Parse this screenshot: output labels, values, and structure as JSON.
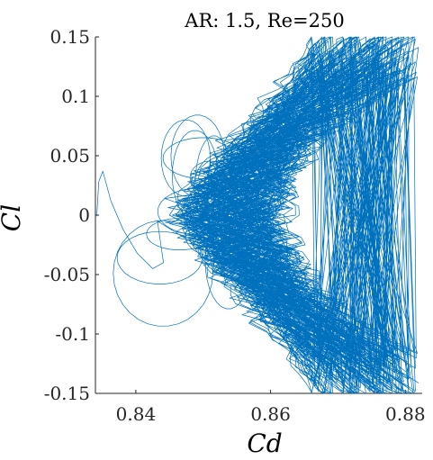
{
  "chart_data": {
    "type": "line",
    "title": "AR: 1.5, Re=250",
    "xlabel": "Cd",
    "ylabel": "Cl",
    "xlim": [
      0.834,
      0.8825
    ],
    "ylim": [
      -0.15,
      0.15
    ],
    "x_ticks": [
      0.84,
      0.86,
      0.88
    ],
    "x_tick_labels": [
      "0.84",
      "0.86",
      "0.88"
    ],
    "y_ticks": [
      -0.15,
      -0.1,
      -0.05,
      0,
      0.05,
      0.1,
      0.15
    ],
    "y_tick_labels": [
      "-0.15",
      "-0.1",
      "-0.05",
      "0",
      "0.05",
      "0.1",
      "0.15"
    ],
    "grid": false,
    "box": "open",
    "series": [
      {
        "color": "#0072BD",
        "description_of_shape": "chaotic closed-loop trajectory in the Cd-Cl plane forming a sideways V / chevron",
        "x": [
          0.8342,
          0.8345,
          0.8351,
          0.8363,
          0.8381,
          0.8402,
          0.8425,
          0.8441,
          0.8432,
          0.8448,
          0.8472,
          0.8455,
          0.8465,
          0.8487,
          0.851,
          0.8539,
          0.8574,
          0.8612,
          0.8651,
          0.869,
          0.8728,
          0.8765,
          0.8798,
          0.8822,
          0.8792,
          0.8755,
          0.8717,
          0.8679,
          0.8641,
          0.8603,
          0.857,
          0.8547,
          0.8532,
          0.8527,
          0.8533,
          0.8549,
          0.8574,
          0.8608,
          0.8646,
          0.8685,
          0.8724,
          0.8763,
          0.8798,
          0.8824
        ],
        "y": [
          -0.001,
          0.028,
          0.037,
          0.012,
          -0.012,
          -0.032,
          -0.045,
          -0.04,
          -0.005,
          0.02,
          0.035,
          0.06,
          0.072,
          0.08,
          0.087,
          0.093,
          0.1,
          0.107,
          0.112,
          0.117,
          0.122,
          0.126,
          0.129,
          0.131,
          0.12,
          0.108,
          0.097,
          0.085,
          0.071,
          0.055,
          0.037,
          0.018,
          0.0,
          -0.018,
          -0.036,
          -0.052,
          -0.066,
          -0.078,
          -0.089,
          -0.099,
          -0.108,
          -0.116,
          -0.124,
          -0.131
        ]
      }
    ]
  }
}
